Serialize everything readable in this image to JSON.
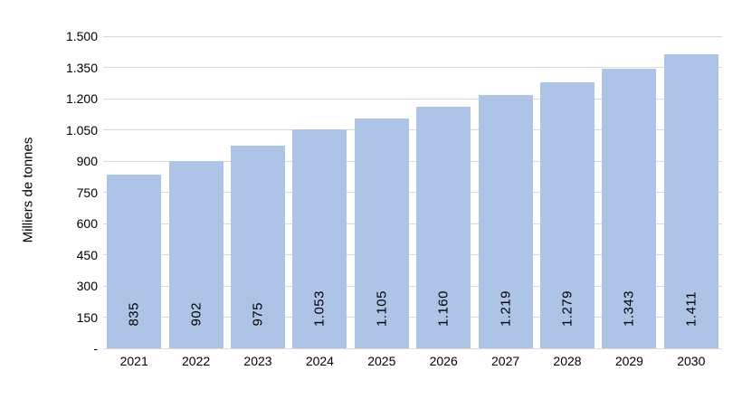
{
  "chart_data": {
    "type": "bar",
    "ylabel": "Milliers de tonnes",
    "xlabel": "",
    "categories": [
      "2021",
      "2022",
      "2023",
      "2024",
      "2025",
      "2026",
      "2027",
      "2028",
      "2029",
      "2030"
    ],
    "values": [
      835,
      902,
      975,
      1053,
      1105,
      1160,
      1219,
      1279,
      1343,
      1411
    ],
    "value_labels": [
      "835",
      "902",
      "975",
      "1.053",
      "1.105",
      "1.160",
      "1.219",
      "1.279",
      "1.343",
      "1.411"
    ],
    "ylim": [
      0,
      1500
    ],
    "ytick_step": 150,
    "ytick_labels": [
      "-",
      "150",
      "300",
      "450",
      "600",
      "750",
      "900",
      "1.050",
      "1.200",
      "1.350",
      "1.500"
    ],
    "grid": "horizontal",
    "legend": "none",
    "bar_color": "#adc4e7",
    "gridline_color": "#d9d9d9",
    "text_color": "#000000"
  }
}
